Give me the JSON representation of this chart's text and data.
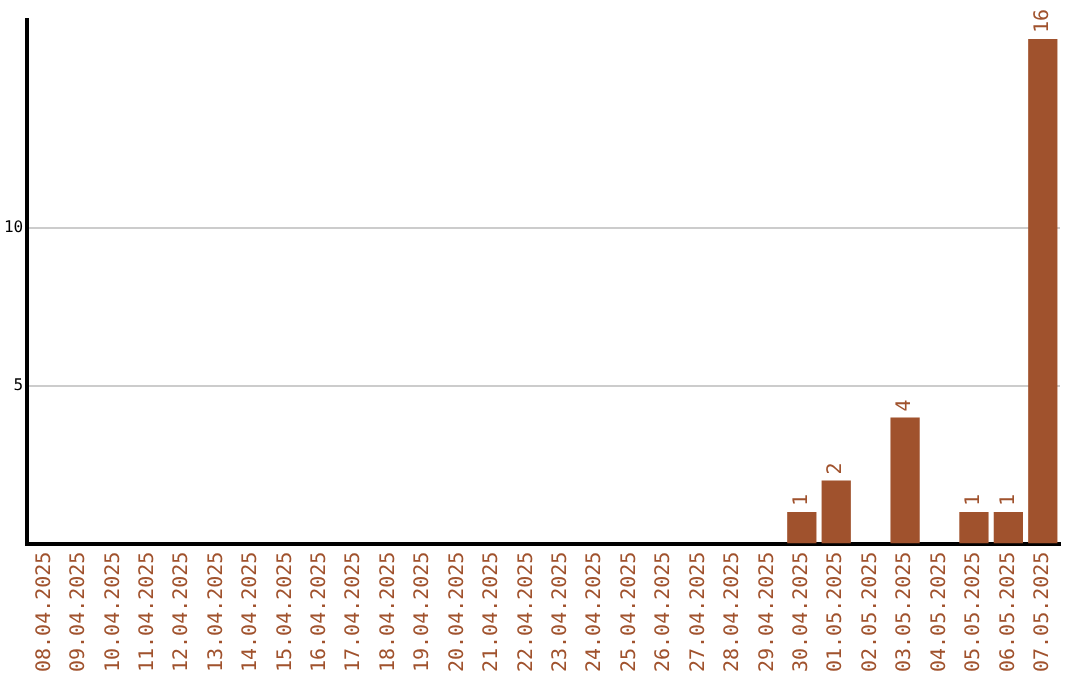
{
  "chart_data": {
    "type": "bar",
    "categories": [
      "08.04.2025",
      "09.04.2025",
      "10.04.2025",
      "11.04.2025",
      "12.04.2025",
      "13.04.2025",
      "14.04.2025",
      "15.04.2025",
      "16.04.2025",
      "17.04.2025",
      "18.04.2025",
      "19.04.2025",
      "20.04.2025",
      "21.04.2025",
      "22.04.2025",
      "23.04.2025",
      "24.04.2025",
      "25.04.2025",
      "26.04.2025",
      "27.04.2025",
      "28.04.2025",
      "29.04.2025",
      "30.04.2025",
      "01.05.2025",
      "02.05.2025",
      "03.05.2025",
      "04.05.2025",
      "05.05.2025",
      "06.05.2025",
      "07.05.2025"
    ],
    "values": [
      0,
      0,
      0,
      0,
      0,
      0,
      0,
      0,
      0,
      0,
      0,
      0,
      0,
      0,
      0,
      0,
      0,
      0,
      0,
      0,
      0,
      0,
      1,
      2,
      0,
      4,
      0,
      1,
      1,
      16
    ],
    "value_labels": [
      null,
      null,
      null,
      null,
      null,
      null,
      null,
      null,
      null,
      null,
      null,
      null,
      null,
      null,
      null,
      null,
      null,
      null,
      null,
      null,
      null,
      null,
      "1",
      "2",
      null,
      "4",
      null,
      "1",
      "1",
      "16"
    ],
    "color": "#a0522d",
    "ylim": [
      0,
      16.6
    ],
    "yticks": [
      5,
      10
    ],
    "grid": "y",
    "legend": false
  }
}
